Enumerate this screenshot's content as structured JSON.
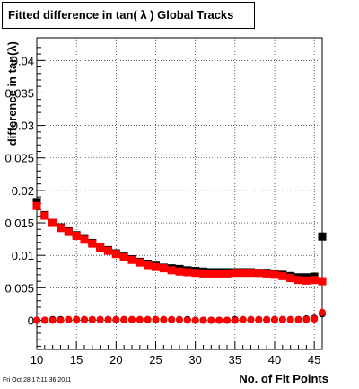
{
  "chart_data": {
    "type": "scatter",
    "title": "Fitted difference in tan( λ )  Global Tracks",
    "xlabel": "No. of Fit Points",
    "ylabel": "difference in tan(λ)",
    "xlim": [
      10,
      46
    ],
    "ylim": [
      -0.0045,
      0.0435
    ],
    "grid": true,
    "x_ticks": [
      10,
      15,
      20,
      25,
      30,
      35,
      40,
      45
    ],
    "y_ticks": [
      0,
      0.005,
      0.01,
      0.015,
      0.02,
      0.025,
      0.03,
      0.035,
      0.04
    ],
    "y_tick_labels": [
      "0",
      "0.005",
      "0.01",
      "0.015",
      "0.02",
      "0.025",
      "0.03",
      "0.035",
      "0.04"
    ],
    "x": [
      10,
      11,
      12,
      13,
      14,
      15,
      16,
      17,
      18,
      19,
      20,
      21,
      22,
      23,
      24,
      25,
      26,
      27,
      28,
      29,
      30,
      31,
      32,
      33,
      34,
      35,
      36,
      37,
      38,
      39,
      40,
      41,
      42,
      43,
      44,
      45,
      46
    ],
    "series": [
      {
        "color": "#000000",
        "marker": "square",
        "values": [
          0.0182,
          0.0162,
          0.015,
          0.0143,
          0.0137,
          0.0131,
          0.0125,
          0.0119,
          0.0113,
          0.0108,
          0.0103,
          0.0098,
          0.0094,
          0.009,
          0.0087,
          0.0084,
          0.0081,
          0.008,
          0.0079,
          0.0077,
          0.0076,
          0.0075,
          0.0074,
          0.0074,
          0.0074,
          0.0074,
          0.0074,
          0.0074,
          0.0073,
          0.0073,
          0.0072,
          0.007,
          0.0068,
          0.0066,
          0.0066,
          0.0067,
          0.0129
        ]
      },
      {
        "color": "#ff0000",
        "marker": "square",
        "values": [
          0.0176,
          0.0161,
          0.015,
          0.0142,
          0.0136,
          0.013,
          0.0124,
          0.0118,
          0.0112,
          0.0107,
          0.0102,
          0.0097,
          0.0093,
          0.0089,
          0.0085,
          0.0082,
          0.008,
          0.0077,
          0.0075,
          0.0074,
          0.0073,
          0.0072,
          0.0072,
          0.0072,
          0.0072,
          0.0073,
          0.0073,
          0.0073,
          0.0073,
          0.0072,
          0.007,
          0.0068,
          0.0065,
          0.0062,
          0.0061,
          0.0062,
          0.006
        ]
      },
      {
        "color": "#000000",
        "marker": "circle",
        "values": [
          0.0,
          0.0,
          0.0001,
          0.0001,
          0.0001,
          0.0001,
          0.0001,
          0.0001,
          0.0001,
          0.0001,
          0.0001,
          0.0001,
          0.0001,
          0.0001,
          0.0001,
          0.0001,
          0.0001,
          0.0001,
          0.0001,
          0.0001,
          0.0,
          0.0,
          0.0,
          0.0,
          0.0,
          0.0001,
          0.0001,
          0.0001,
          0.0001,
          0.0001,
          0.0001,
          0.0001,
          0.0001,
          0.0001,
          0.0002,
          0.0003,
          0.001
        ]
      },
      {
        "color": "#ff0000",
        "marker": "circle",
        "values": [
          0.0,
          0.0,
          0.0,
          0.0,
          0.0001,
          0.0001,
          0.0001,
          0.0001,
          0.0001,
          0.0001,
          0.0001,
          0.0001,
          0.0001,
          0.0001,
          0.0001,
          0.0001,
          0.0001,
          0.0001,
          0.0001,
          0.0,
          0.0,
          0.0,
          0.0,
          0.0,
          0.0,
          0.0,
          0.0001,
          0.0001,
          0.0001,
          0.0001,
          0.0001,
          0.0001,
          0.0001,
          0.0001,
          0.0001,
          0.0002,
          0.0012
        ]
      }
    ]
  },
  "footer": {
    "timestamp": "Fri Oct 28 17:11:36 2011"
  }
}
